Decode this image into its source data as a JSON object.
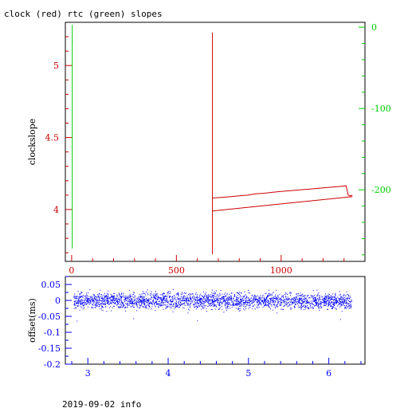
{
  "chart_data": [
    {
      "type": "line",
      "title": "clock (red) rtc (green) slopes",
      "xlim": [
        -30,
        1400
      ],
      "x_ticks": [
        "0",
        "500",
        "1000"
      ],
      "left_axis": {
        "label": "clockslope",
        "ylim": [
          3.64,
          5.3
        ],
        "ticks": [
          "4",
          "4.5",
          "5"
        ],
        "color": "#cc0000"
      },
      "right_axis": {
        "ylim": [
          -288,
          6
        ],
        "ticks": [
          "0",
          "-100",
          "-200"
        ],
        "color": "#00cc00"
      },
      "series": [
        {
          "name": "clock",
          "axis": "left",
          "color": "#cc0000",
          "segments": [
            [
              [
                672,
                3.69
              ],
              [
                672,
                5.23
              ]
            ],
            [
              [
                672,
                4.08
              ],
              [
                720,
                4.085
              ],
              [
                760,
                4.09
              ],
              [
                800,
                4.095
              ],
              [
                840,
                4.1
              ],
              [
                880,
                4.11
              ],
              [
                920,
                4.113
              ],
              [
                960,
                4.12
              ],
              [
                1000,
                4.125
              ],
              [
                1040,
                4.13
              ],
              [
                1080,
                4.135
              ],
              [
                1120,
                4.14
              ],
              [
                1160,
                4.145
              ],
              [
                1200,
                4.15
              ],
              [
                1240,
                4.155
              ],
              [
                1280,
                4.16
              ],
              [
                1310,
                4.165
              ],
              [
                1320,
                4.1
              ],
              [
                1330,
                4.095
              ],
              [
                1340,
                4.1
              ]
            ],
            [
              [
                672,
                3.99
              ],
              [
                1340,
                4.09
              ]
            ]
          ]
        },
        {
          "name": "rtc",
          "axis": "right",
          "color": "#00cc00",
          "segments": [
            [
              [
                3,
                3
              ],
              [
                3,
                -272
              ]
            ],
            [
              [
                1,
                -18
              ],
              [
                5,
                -18
              ]
            ]
          ]
        }
      ]
    },
    {
      "type": "scatter",
      "title": "",
      "xlim": [
        2.72,
        6.45
      ],
      "ylim": [
        -0.2,
        0.075
      ],
      "x_ticks": [
        "3",
        "4",
        "5",
        "6"
      ],
      "y_ticks": [
        "0.05",
        "0",
        "-0.05",
        "-0.1",
        "-0.15",
        "-0.2"
      ],
      "ylabel": "offset(ms)",
      "color": "#0000ff",
      "x_range": [
        2.82,
        6.28
      ],
      "y_center": 0.0,
      "y_spread": 0.012,
      "outlier_min": -0.065,
      "outlier_max": 0.04
    }
  ],
  "footer": "2019-09-02 info"
}
